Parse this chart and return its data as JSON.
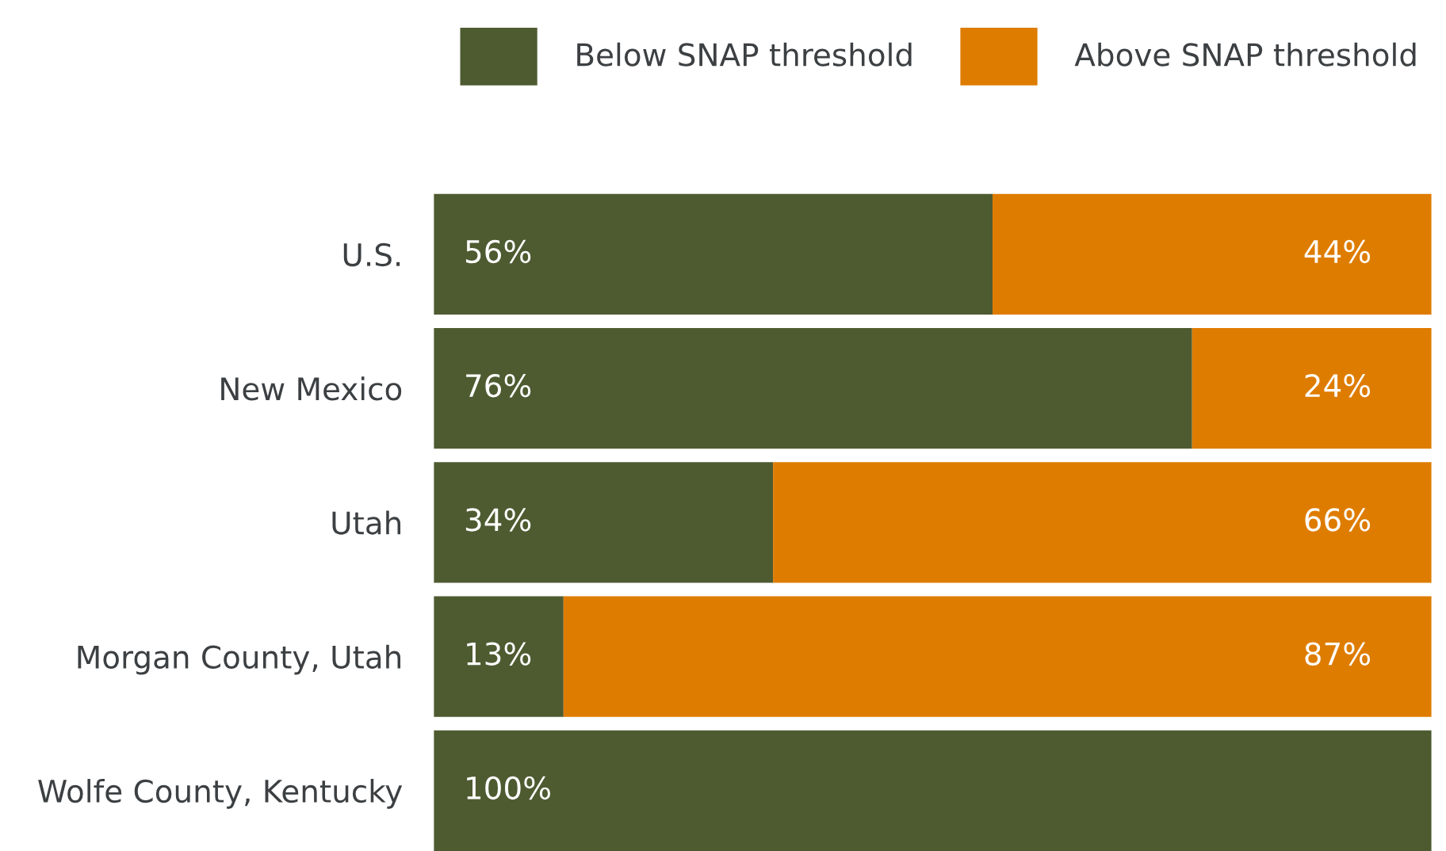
{
  "chart_data": {
    "type": "bar",
    "orientation": "horizontal",
    "stacked": true,
    "categories": [
      "U.S.",
      "New Mexico",
      "Utah",
      "Morgan County, Utah",
      "Wolfe County, Kentucky"
    ],
    "series": [
      {
        "name": "Below SNAP threshold",
        "color": "#4e5b31",
        "values": [
          56,
          76,
          34,
          13,
          100
        ],
        "value_labels": [
          "56%",
          "76%",
          "34%",
          "13%",
          "100%"
        ]
      },
      {
        "name": "Above SNAP threshold",
        "color": "#de7c00",
        "values": [
          44,
          24,
          66,
          87,
          0
        ],
        "value_labels": [
          "44%",
          "24%",
          "66%",
          "87%",
          null
        ]
      }
    ],
    "xlim": [
      0,
      100
    ],
    "tick_labels": "y",
    "grid": false,
    "legend": "top right"
  }
}
